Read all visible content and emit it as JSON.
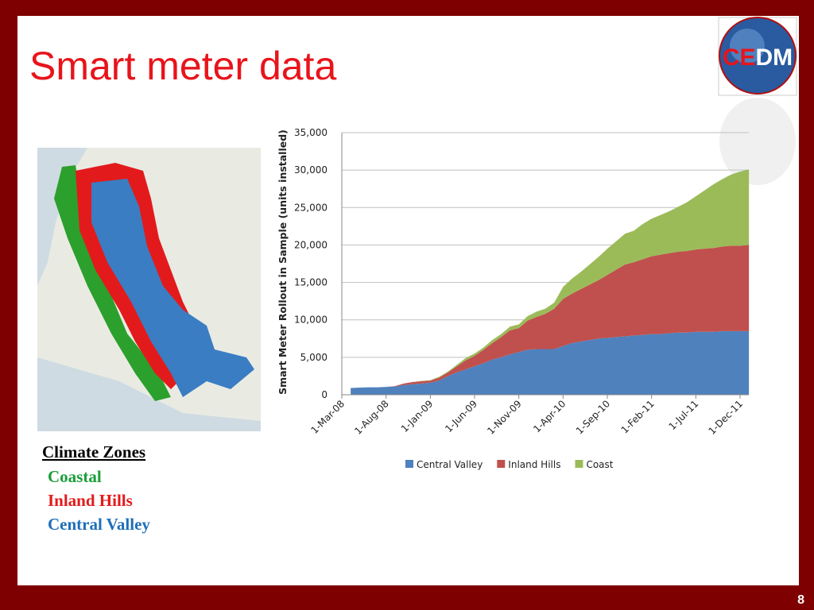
{
  "slide": {
    "title": "Smart meter data",
    "page_number": "8",
    "logo_parts": [
      "CE",
      "DM"
    ],
    "climate_zones": {
      "heading": "Climate Zones",
      "items": [
        "Coastal",
        "Inland Hills",
        "Central Valley"
      ],
      "colors": [
        "#1a9e3a",
        "#e31a1c",
        "#1f6fb8"
      ]
    }
  },
  "chart_data": {
    "type": "stacked_area",
    "y_label": "Smart Meter Rollout in Sample (units installed)",
    "categories": [
      "1-Mar-08",
      null,
      null,
      null,
      null,
      "1-Aug-08",
      null,
      null,
      null,
      null,
      "1-Jan-09",
      null,
      null,
      null,
      null,
      "1-Jun-09",
      null,
      null,
      null,
      null,
      "1-Nov-09",
      null,
      null,
      null,
      null,
      "1-Apr-10",
      null,
      null,
      null,
      null,
      "1-Sep-10",
      null,
      null,
      null,
      null,
      "1-Feb-11",
      null,
      null,
      null,
      null,
      "1-Jul-11",
      null,
      null,
      null,
      null,
      "1-Dec-11",
      null
    ],
    "series": [
      {
        "name": "Central Valley",
        "color": "#4f81bd",
        "values": [
          null,
          900,
          950,
          1000,
          1000,
          1050,
          1100,
          1300,
          1400,
          1500,
          1600,
          1900,
          2500,
          3000,
          3400,
          3800,
          4200,
          4700,
          5000,
          5400,
          5700,
          6000,
          6100,
          6100,
          6100,
          6500,
          6900,
          7100,
          7300,
          7500,
          7600,
          7700,
          7800,
          7900,
          8000,
          8100,
          8100,
          8200,
          8300,
          8300,
          8400,
          8400,
          8400,
          8500,
          8500,
          8500,
          8500
        ]
      },
      {
        "name": "Inland Hills",
        "color": "#c0504d",
        "values": [
          null,
          0,
          0,
          0,
          0,
          0,
          50,
          200,
          300,
          300,
          300,
          400,
          500,
          800,
          1200,
          1400,
          1800,
          2200,
          2700,
          3200,
          3200,
          3900,
          4300,
          4700,
          5400,
          6300,
          6600,
          7000,
          7400,
          7800,
          8400,
          9000,
          9600,
          9800,
          10100,
          10400,
          10600,
          10700,
          10800,
          10900,
          11000,
          11100,
          11200,
          11300,
          11400,
          11400,
          11500
        ]
      },
      {
        "name": "Coast",
        "color": "#9bbb59",
        "values": [
          null,
          0,
          0,
          0,
          0,
          0,
          0,
          0,
          0,
          50,
          50,
          100,
          100,
          200,
          300,
          300,
          300,
          400,
          400,
          500,
          500,
          600,
          700,
          700,
          800,
          1600,
          2000,
          2300,
          2700,
          3100,
          3500,
          3800,
          4100,
          4200,
          4700,
          5000,
          5300,
          5600,
          6000,
          6500,
          7100,
          7800,
          8500,
          9000,
          9500,
          9900,
          10100
        ]
      }
    ],
    "ylim": [
      0,
      35000
    ],
    "yticks": [
      0,
      {
        "value": 5000,
        "label": "5,000"
      },
      {
        "value": 10000,
        "label": "10,000"
      },
      {
        "value": 15000,
        "label": "15,000"
      },
      {
        "value": 20000,
        "label": "20,000"
      },
      {
        "value": 25000,
        "label": "25,000"
      },
      {
        "value": 30000,
        "label": "30,000"
      },
      {
        "value": 35000,
        "label": "35,000"
      }
    ],
    "grid": true,
    "legend": "bottom"
  }
}
